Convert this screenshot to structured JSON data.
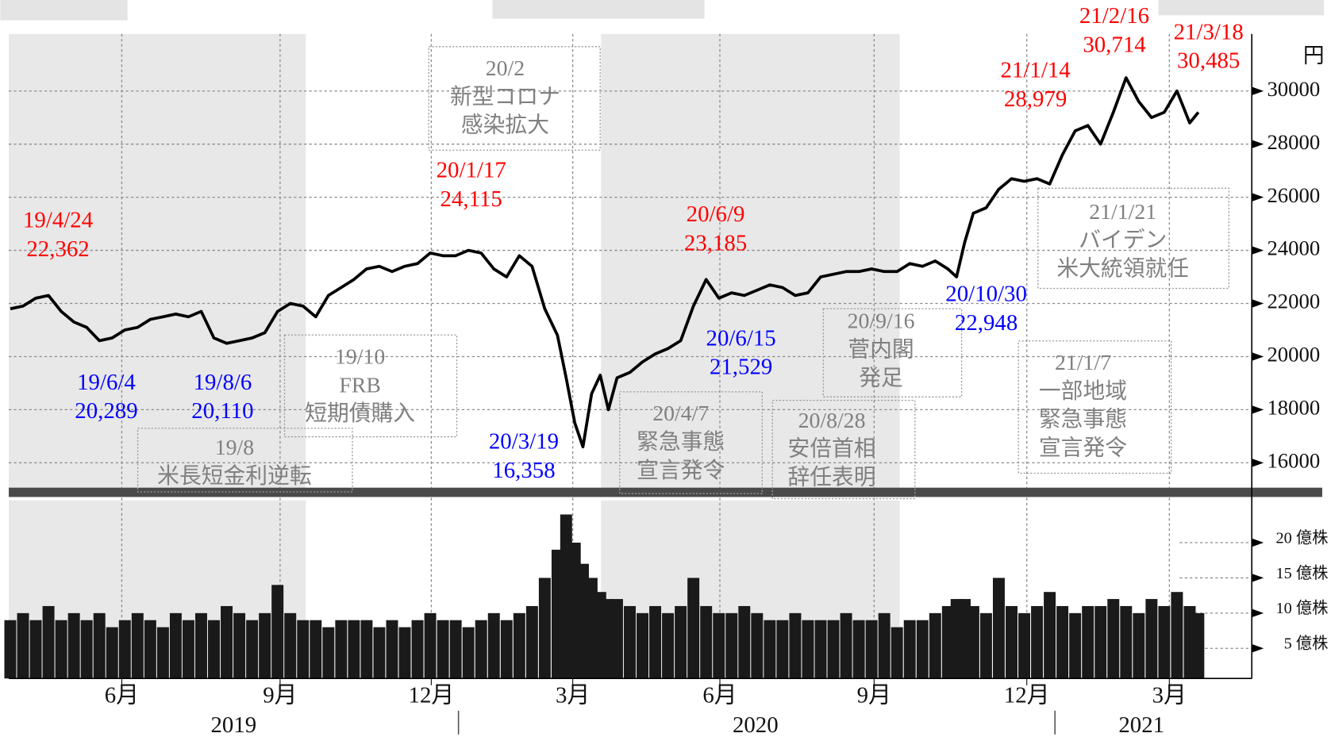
{
  "chart_data": [
    {
      "type": "line",
      "x": [
        2.78,
        3.03,
        3.28,
        3.53,
        3.78,
        4.03,
        4.28,
        4.53,
        4.78,
        5.03,
        5.28,
        5.53,
        5.78,
        6.03,
        6.28,
        6.53,
        6.78,
        7.03,
        7.28,
        7.53,
        7.78,
        8.03,
        8.28,
        8.53,
        8.78,
        9.03,
        9.28,
        9.53,
        9.78,
        10.03,
        10.28,
        10.53,
        10.78,
        11.03,
        11.28,
        11.53,
        11.78,
        12.03,
        12.28,
        12.53,
        12.78,
        13.03,
        13.28,
        13.53,
        13.7,
        13.87,
        14.03,
        14.2,
        14.37,
        14.53,
        14.7,
        14.95,
        15.2,
        15.45,
        15.7,
        15.95,
        16.2,
        16.45,
        16.7,
        16.95,
        17.2,
        17.45,
        17.7,
        17.95,
        18.2,
        18.45,
        18.7,
        18.95,
        19.2,
        19.45,
        19.7,
        19.95,
        20.2,
        20.45,
        20.7,
        20.95,
        21.2,
        21.37,
        21.53,
        21.7,
        21.95,
        22.2,
        22.45,
        22.7,
        22.95,
        23.2,
        23.45,
        23.7,
        23.95,
        24.2,
        24.45,
        24.7,
        24.95,
        25.2,
        25.45,
        25.7,
        25.95,
        26.12
      ],
      "values": [
        21800,
        21900,
        22200,
        22300,
        21700,
        21300,
        21100,
        20600,
        20700,
        21000,
        21100,
        21400,
        21500,
        21600,
        21500,
        21700,
        20700,
        20500,
        20600,
        20700,
        20900,
        21700,
        22000,
        21900,
        21500,
        22300,
        22600,
        22900,
        23300,
        23400,
        23200,
        23400,
        23500,
        23900,
        23800,
        23800,
        24000,
        23900,
        23300,
        23000,
        23800,
        23400,
        21800,
        20800,
        19200,
        17500,
        16600,
        18600,
        19300,
        18000,
        19200,
        19400,
        19800,
        20100,
        20300,
        20600,
        21900,
        22900,
        22200,
        22400,
        22300,
        22500,
        22700,
        22600,
        22300,
        22400,
        23000,
        23100,
        23200,
        23200,
        23300,
        23200,
        23200,
        23500,
        23400,
        23600,
        23300,
        23000,
        24300,
        25400,
        25600,
        26300,
        26700,
        26600,
        26700,
        26500,
        27600,
        28500,
        28700,
        28000,
        29200,
        30500,
        29600,
        29000,
        29200,
        30000,
        28800,
        29200
      ],
      "color": "#000000",
      "xlim": [
        2.75,
        27.17
      ],
      "xticks": [
        {
          "value": 4.97,
          "label": "6月"
        },
        {
          "value": 8.08,
          "label": "9月"
        },
        {
          "value": 11.05,
          "label": "12月"
        },
        {
          "value": 13.83,
          "label": "3月"
        },
        {
          "value": 16.72,
          "label": "6月"
        },
        {
          "value": 19.75,
          "label": "9月"
        },
        {
          "value": 22.75,
          "label": "12月"
        },
        {
          "value": 25.55,
          "label": "3月"
        }
      ],
      "year_labels": [
        "2019",
        "2020",
        "2021"
      ],
      "ylim": [
        15000,
        32150
      ],
      "yticks": [
        16000,
        18000,
        20000,
        22000,
        24000,
        26000,
        28000,
        30000
      ],
      "y_unit": "円",
      "grid": true,
      "high_color": "#ff0000",
      "low_color": "#0000ff",
      "highs": [
        {
          "date": "19/4/24",
          "value": "22,362"
        },
        {
          "date": "20/1/17",
          "value": "24,115"
        },
        {
          "date": "20/6/9",
          "value": "23,185"
        },
        {
          "date": "21/1/14",
          "value": "28,979"
        },
        {
          "date": "21/2/16",
          "value": "30,714"
        },
        {
          "date": "21/3/18",
          "value": "30,485"
        }
      ],
      "lows": [
        {
          "date": "19/6/4",
          "value": "20,289"
        },
        {
          "date": "19/8/6",
          "value": "20,110"
        },
        {
          "date": "20/3/19",
          "value": "16,358"
        },
        {
          "date": "20/6/15",
          "value": "21,529"
        },
        {
          "date": "20/10/30",
          "value": "22,948"
        }
      ],
      "events": [
        [
          "20/2",
          "新型コロナ",
          "感染拡大"
        ],
        [
          "19/10",
          "FRB",
          "短期債購入"
        ],
        [
          "19/8",
          "米長短金利逆転"
        ],
        [
          "20/4/7",
          "緊急事態",
          "宣言発令"
        ],
        [
          "20/8/28",
          "安倍首相",
          "辞任表明"
        ],
        [
          "20/9/16",
          "菅内閣",
          "発足"
        ],
        [
          "21/1/7",
          "一部地域",
          "緊急事態",
          "宣言発令"
        ],
        [
          "21/1/21",
          "バイデン",
          "米大統領就任"
        ]
      ]
    },
    {
      "type": "bar",
      "values": [
        9,
        10,
        9,
        11,
        9,
        10,
        9,
        10,
        8,
        9,
        10,
        9,
        8,
        10,
        9,
        10,
        9,
        11,
        10,
        9,
        10,
        14,
        10,
        9,
        9,
        8,
        9,
        9,
        9,
        8,
        9,
        8,
        9,
        10,
        9,
        9,
        8,
        9,
        10,
        9,
        10,
        11,
        15,
        19,
        24,
        20,
        17,
        15,
        13,
        12,
        12,
        11,
        10,
        11,
        10,
        11,
        15,
        11,
        10,
        10,
        11,
        10,
        9,
        9,
        10,
        9,
        9,
        9,
        10,
        9,
        9,
        10,
        8,
        9,
        9,
        10,
        11,
        12,
        12,
        11,
        10,
        15,
        11,
        10,
        11,
        13,
        11,
        10,
        11,
        11,
        12,
        11,
        10,
        12,
        11,
        13,
        11,
        10
      ],
      "color": "#1a1a1a",
      "ylim": [
        0,
        26
      ],
      "yticks": [
        {
          "value": 5,
          "label": "5 億株"
        },
        {
          "value": 10,
          "label": "10 億株"
        },
        {
          "value": 15,
          "label": "15 億株"
        },
        {
          "value": 20,
          "label": "20 億株"
        }
      ],
      "grid": true
    }
  ]
}
